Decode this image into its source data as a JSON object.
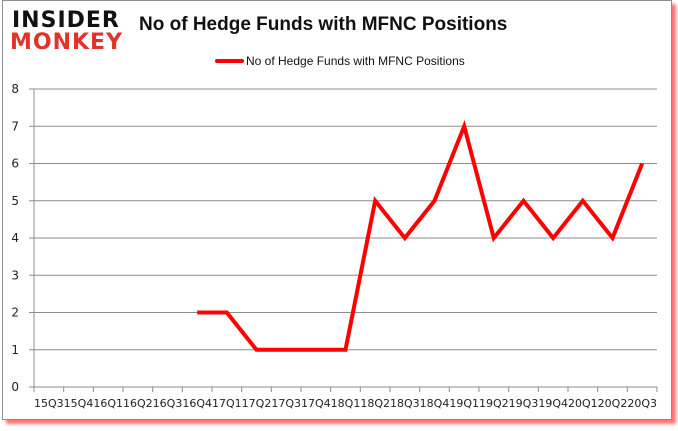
{
  "branding": {
    "line1": "INSIDER",
    "line2": "MONKEY",
    "accent": "#e0342a"
  },
  "chart_data": {
    "type": "line",
    "title": "No of Hedge Funds with MFNC Positions",
    "xlabel": "",
    "ylabel": "",
    "categories": [
      "15Q3",
      "15Q4",
      "16Q1",
      "16Q2",
      "16Q3",
      "16Q4",
      "17Q1",
      "17Q2",
      "17Q3",
      "17Q4",
      "18Q1",
      "18Q2",
      "18Q3",
      "18Q4",
      "19Q1",
      "19Q2",
      "19Q3",
      "19Q4",
      "20Q1",
      "20Q2",
      "20Q3"
    ],
    "series": [
      {
        "name": "No of Hedge Funds with MFNC Positions",
        "color": "#ff0000",
        "values": [
          null,
          null,
          null,
          null,
          null,
          2,
          2,
          1,
          1,
          1,
          1,
          5,
          4,
          5,
          7,
          4,
          5,
          4,
          5,
          4,
          6
        ]
      }
    ],
    "ylim": [
      0,
      8
    ],
    "yticks": [
      0,
      1,
      2,
      3,
      4,
      5,
      6,
      7,
      8
    ],
    "grid": true,
    "legend_position": "top"
  }
}
